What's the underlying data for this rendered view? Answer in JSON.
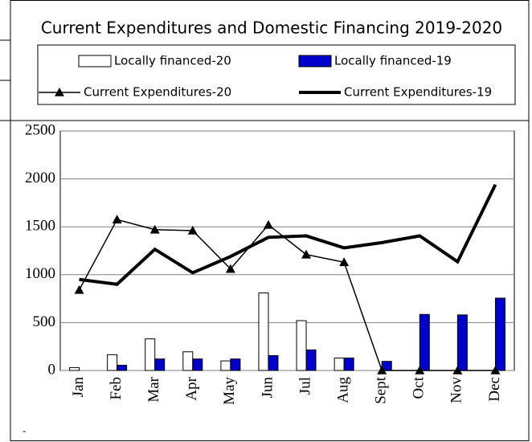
{
  "chart_data": {
    "type": "bar_line",
    "title": "Current Expenditures and Domestic Financing 2019-2020",
    "categories": [
      "Jan",
      "Feb",
      "Mar",
      "Apr",
      "May",
      "Jun",
      "Jul",
      "Aug",
      "Sept",
      "Oct",
      "Nov",
      "Dec"
    ],
    "series": [
      {
        "name": "Locally financed-20",
        "kind": "bar",
        "color": "#ffffff",
        "values": [
          30,
          165,
          330,
          195,
          100,
          810,
          520,
          130,
          0,
          0,
          0,
          0
        ]
      },
      {
        "name": "Locally financed-19",
        "kind": "bar",
        "color": "#0000cc",
        "values": [
          0,
          55,
          120,
          120,
          120,
          155,
          215,
          130,
          95,
          585,
          580,
          755
        ]
      },
      {
        "name": "Current Expenditures-20",
        "kind": "line",
        "color": "#000000",
        "marker": "triangle",
        "values": [
          840,
          1575,
          1470,
          1460,
          1060,
          1520,
          1210,
          1130,
          0,
          0,
          0,
          0
        ]
      },
      {
        "name": "Current Expenditures-19",
        "kind": "line",
        "color": "#000000",
        "values": [
          950,
          900,
          1265,
          1020,
          1190,
          1390,
          1405,
          1280,
          1335,
          1405,
          1135,
          1940
        ]
      }
    ],
    "ylim": [
      0,
      2500
    ],
    "yticks": [
      0,
      500,
      1000,
      1500,
      2000,
      2500
    ],
    "grid": true,
    "legend": "top",
    "note": "-"
  }
}
